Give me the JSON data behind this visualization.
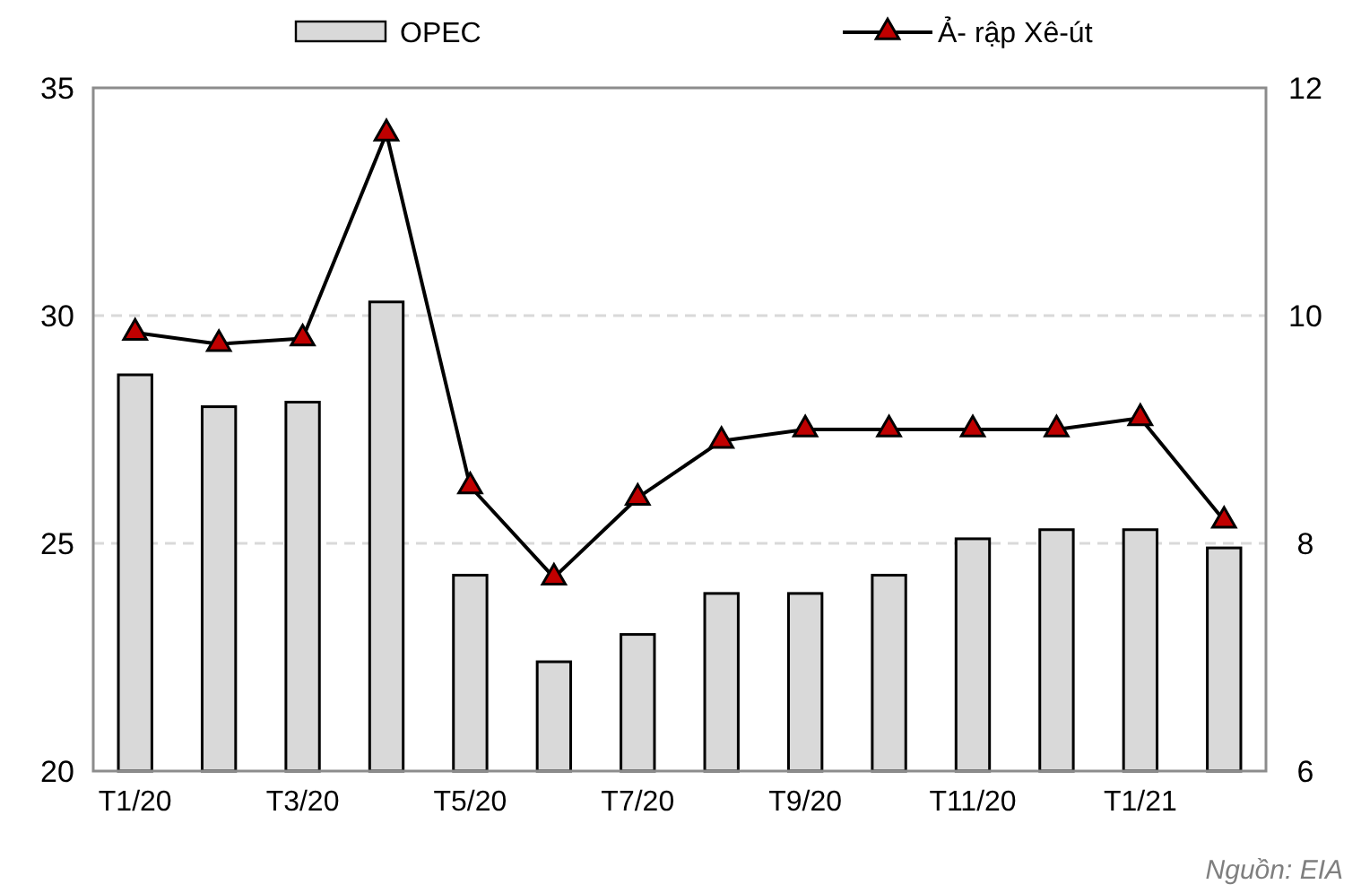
{
  "chart_data": {
    "type": "bar",
    "categories": [
      "T1/20",
      null,
      "T3/20",
      null,
      "T5/20",
      null,
      "T7/20",
      null,
      "T9/20",
      null,
      "T11/20",
      null,
      "T1/21",
      null
    ],
    "series": [
      {
        "name": "OPEC",
        "color": "#d9d9d9",
        "values": [
          28.7,
          28.0,
          28.1,
          30.3,
          24.3,
          22.4,
          23.0,
          23.9,
          23.9,
          24.3,
          25.1,
          25.3,
          25.3,
          24.9
        ]
      },
      {
        "name": "Ả- rập Xê-út",
        "type": "line",
        "axis": "y2",
        "color": "#c00000",
        "marker": "triangle",
        "values": [
          9.85,
          9.75,
          9.8,
          11.6,
          8.5,
          7.7,
          8.4,
          8.9,
          9.0,
          9.0,
          9.0,
          9.0,
          9.1,
          8.2
        ]
      }
    ],
    "ylim": [
      20,
      35
    ],
    "yticks": [
      20,
      25,
      30,
      35
    ],
    "y2lim": [
      6,
      12
    ],
    "y2ticks": [
      6,
      8,
      10,
      12
    ],
    "grid": "y",
    "legend": "top",
    "annotations": [
      "Nguồn: EIA"
    ]
  }
}
